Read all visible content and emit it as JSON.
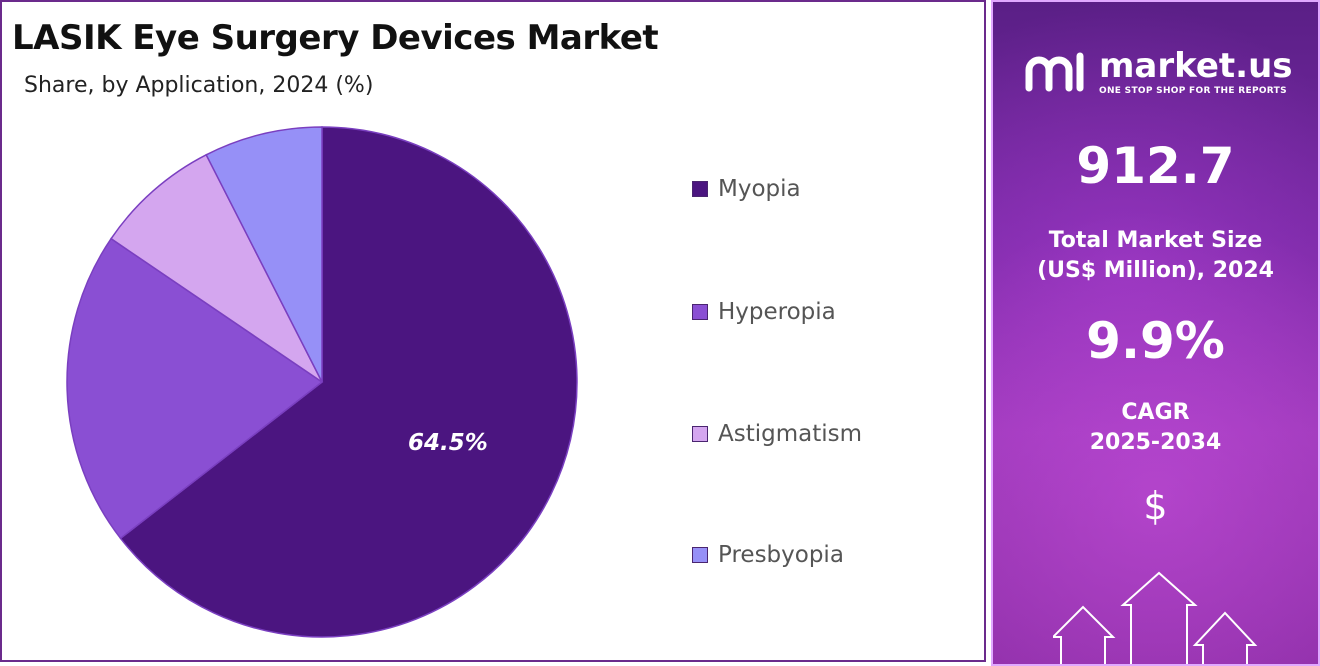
{
  "chart_data": {
    "type": "pie",
    "title": "LASIK Eye Surgery Devices Market",
    "subtitle": "Share, by Application, 2024 (%)",
    "slices": [
      {
        "label": "Myopia",
        "value": 64.5,
        "color": "#4b1580",
        "data_label": "64.5%"
      },
      {
        "label": "Hyperopia",
        "value": 20.0,
        "color": "#8a4fd3",
        "data_label": ""
      },
      {
        "label": "Astigmatism",
        "value": 8.0,
        "color": "#d4a6ef",
        "data_label": ""
      },
      {
        "label": "Presbyopia",
        "value": 7.5,
        "color": "#9690f7",
        "data_label": ""
      }
    ],
    "legend_placement": "right"
  },
  "brand": {
    "name": "market.us",
    "tagline": "ONE STOP SHOP FOR THE REPORTS",
    "logo_icon": "market-us-logo-icon"
  },
  "stats": {
    "market_size_value": "912.7",
    "market_size_label_line1": "Total Market Size",
    "market_size_label_line2": "(US$ Million), 2024",
    "cagr_value": "9.9%",
    "cagr_label_line1": "CAGR",
    "cagr_label_line2": "2025-2034",
    "dollar_symbol": "$"
  },
  "colors": {
    "frame": "#6b2a8c",
    "panel_accent": "#7a2aa6"
  }
}
